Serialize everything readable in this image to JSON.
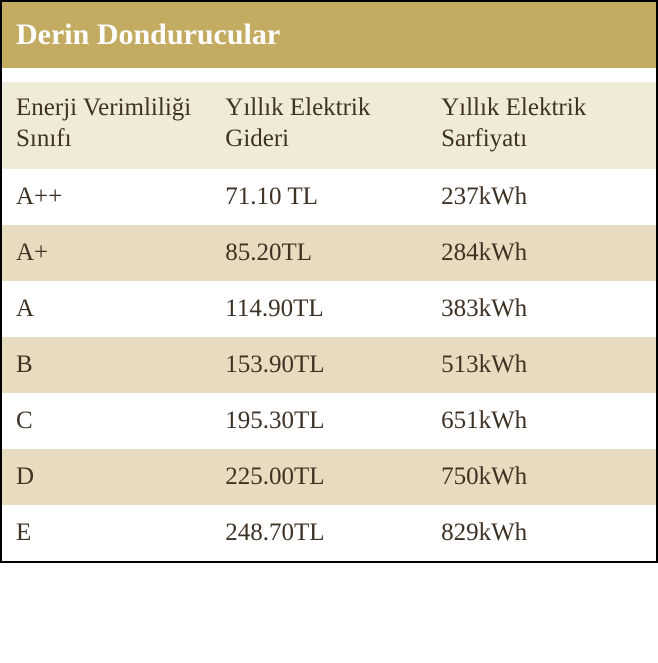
{
  "table": {
    "title": "Derin Dondurucular",
    "colors": {
      "title_bg": "#c3ab62",
      "title_fg": "#ffffff",
      "header_bg": "#f0ead9",
      "text_color": "#3f3225",
      "row_odd_bg": "#ffffff",
      "row_even_bg": "#e7dcc0",
      "border": "#000000"
    },
    "font": {
      "family": "Georgia, Times New Roman, serif",
      "title_size": 30,
      "header_size": 25,
      "cell_size": 25
    },
    "columns": [
      {
        "label": "Enerji Verimliliği Sınıfı",
        "width": "32%"
      },
      {
        "label": "Yıllık Elektrik Gideri",
        "width": "33%"
      },
      {
        "label": "Yıllık Elektrik Sarfiyatı",
        "width": "35%"
      }
    ],
    "rows": [
      {
        "class": "A++",
        "cost": "71.10 TL",
        "consumption": "237kWh"
      },
      {
        "class": "A+",
        "cost": "85.20TL",
        "consumption": "284kWh"
      },
      {
        "class": "A",
        "cost": "114.90TL",
        "consumption": "383kWh"
      },
      {
        "class": "B",
        "cost": "153.90TL",
        "consumption": "513kWh"
      },
      {
        "class": "C",
        "cost": "195.30TL",
        "consumption": "651kWh"
      },
      {
        "class": "D",
        "cost": "225.00TL",
        "consumption": "750kWh"
      },
      {
        "class": "E",
        "cost": "248.70TL",
        "consumption": "829kWh"
      }
    ]
  }
}
